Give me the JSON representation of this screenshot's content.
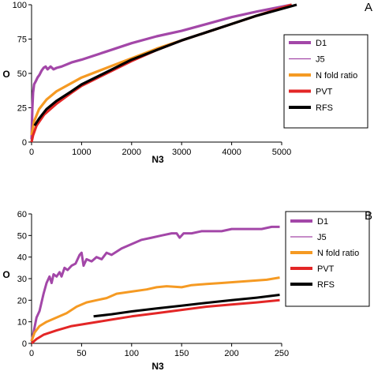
{
  "chart_data": [
    {
      "type": "line",
      "panel_label": "A",
      "xlabel": "N3",
      "ylabel": "O",
      "xlim": [
        0,
        5000
      ],
      "ylim": [
        0,
        100
      ],
      "xticks": [
        "0",
        "1000",
        "2000",
        "3000",
        "4000",
        "5000"
      ],
      "yticks": [
        "0",
        "25",
        "50",
        "75",
        "100"
      ],
      "legend_position": "right",
      "series": [
        {
          "name": "D1",
          "color": "#A347A8",
          "points": [
            [
              0,
              2
            ],
            [
              15,
              25
            ],
            [
              30,
              36
            ],
            [
              50,
              42
            ],
            [
              80,
              44
            ],
            [
              120,
              47
            ],
            [
              160,
              49
            ],
            [
              200,
              52
            ],
            [
              240,
              54
            ],
            [
              280,
              55
            ],
            [
              320,
              53
            ],
            [
              380,
              55
            ],
            [
              440,
              53
            ],
            [
              500,
              54
            ],
            [
              600,
              55
            ],
            [
              800,
              58
            ],
            [
              1000,
              60
            ],
            [
              1500,
              66
            ],
            [
              2000,
              72
            ],
            [
              2500,
              77
            ],
            [
              3000,
              81
            ],
            [
              3500,
              86
            ],
            [
              4000,
              91
            ],
            [
              4500,
              95
            ],
            [
              5200,
              100
            ]
          ]
        },
        {
          "name": "J5",
          "color": "#A347A8",
          "points": []
        },
        {
          "name": "N fold ratio",
          "color": "#F59A23",
          "points": [
            [
              0,
              5
            ],
            [
              50,
              15
            ],
            [
              150,
              24
            ],
            [
              300,
              31
            ],
            [
              500,
              37
            ],
            [
              800,
              43
            ],
            [
              1000,
              47
            ],
            [
              1500,
              54
            ],
            [
              2000,
              61
            ],
            [
              2500,
              68
            ],
            [
              3000,
              74
            ],
            [
              3500,
              80
            ],
            [
              4000,
              86
            ],
            [
              4500,
              92
            ],
            [
              5200,
              100
            ]
          ]
        },
        {
          "name": "PVT",
          "color": "#E32626",
          "points": [
            [
              0,
              0
            ],
            [
              30,
              5
            ],
            [
              100,
              12
            ],
            [
              250,
              20
            ],
            [
              500,
              28
            ],
            [
              800,
              36
            ],
            [
              1000,
              41
            ],
            [
              1500,
              50
            ],
            [
              2000,
              59
            ],
            [
              2500,
              67
            ],
            [
              3000,
              74
            ],
            [
              3500,
              80
            ],
            [
              4000,
              86
            ],
            [
              4500,
              92
            ],
            [
              5200,
              100
            ]
          ]
        },
        {
          "name": "RFS",
          "color": "#000000",
          "points": [
            [
              60,
              12
            ],
            [
              150,
              17
            ],
            [
              300,
              24
            ],
            [
              500,
              30
            ],
            [
              800,
              37
            ],
            [
              1000,
              42
            ],
            [
              1500,
              51
            ],
            [
              2000,
              60
            ],
            [
              2500,
              67
            ],
            [
              3000,
              74
            ],
            [
              3500,
              80
            ],
            [
              4000,
              86
            ],
            [
              4500,
              92
            ],
            [
              5300,
              100
            ]
          ]
        }
      ]
    },
    {
      "type": "line",
      "panel_label": "B",
      "xlabel": "N3",
      "ylabel": "O",
      "xlim": [
        0,
        250
      ],
      "ylim": [
        0,
        60
      ],
      "xticks": [
        "0",
        "50",
        "100",
        "150",
        "200",
        "250"
      ],
      "yticks": [
        "0",
        "10",
        "20",
        "30",
        "40",
        "50",
        "60"
      ],
      "legend_position": "right",
      "series": [
        {
          "name": "D1",
          "color": "#A347A8",
          "points": [
            [
              0,
              1
            ],
            [
              2,
              5
            ],
            [
              5,
              12
            ],
            [
              8,
              15
            ],
            [
              12,
              23
            ],
            [
              15,
              28
            ],
            [
              18,
              31
            ],
            [
              20,
              28
            ],
            [
              22,
              32
            ],
            [
              25,
              31
            ],
            [
              28,
              33
            ],
            [
              30,
              31
            ],
            [
              33,
              35
            ],
            [
              36,
              34
            ],
            [
              40,
              36
            ],
            [
              44,
              37
            ],
            [
              48,
              41
            ],
            [
              50,
              42
            ],
            [
              52,
              36
            ],
            [
              55,
              39
            ],
            [
              60,
              38
            ],
            [
              65,
              40
            ],
            [
              70,
              39
            ],
            [
              75,
              42
            ],
            [
              80,
              41
            ],
            [
              90,
              44
            ],
            [
              100,
              46
            ],
            [
              110,
              48
            ],
            [
              120,
              49
            ],
            [
              130,
              50
            ],
            [
              140,
              51
            ],
            [
              145,
              51
            ],
            [
              148,
              49
            ],
            [
              152,
              51
            ],
            [
              160,
              51
            ],
            [
              170,
              52
            ],
            [
              180,
              52
            ],
            [
              190,
              52
            ],
            [
              200,
              53
            ],
            [
              210,
              53
            ],
            [
              220,
              53
            ],
            [
              230,
              53
            ],
            [
              240,
              54
            ],
            [
              248,
              54
            ]
          ]
        },
        {
          "name": "J5",
          "color": "#A347A8",
          "points": []
        },
        {
          "name": "N fold ratio",
          "color": "#F59A23",
          "points": [
            [
              0,
              1
            ],
            [
              3,
              5
            ],
            [
              8,
              8
            ],
            [
              15,
              10
            ],
            [
              25,
              12
            ],
            [
              35,
              14
            ],
            [
              45,
              17
            ],
            [
              55,
              19
            ],
            [
              65,
              20
            ],
            [
              75,
              21
            ],
            [
              85,
              23
            ],
            [
              100,
              24
            ],
            [
              115,
              25
            ],
            [
              125,
              26
            ],
            [
              135,
              26.5
            ],
            [
              150,
              26
            ],
            [
              160,
              27
            ],
            [
              175,
              27.5
            ],
            [
              190,
              28
            ],
            [
              205,
              28.5
            ],
            [
              220,
              29
            ],
            [
              235,
              29.5
            ],
            [
              248,
              30.5
            ]
          ]
        },
        {
          "name": "PVT",
          "color": "#E32626",
          "points": [
            [
              0,
              0
            ],
            [
              5,
              2
            ],
            [
              12,
              4
            ],
            [
              25,
              6
            ],
            [
              40,
              8
            ],
            [
              60,
              9.5
            ],
            [
              80,
              11
            ],
            [
              100,
              12.5
            ],
            [
              125,
              14
            ],
            [
              150,
              15.5
            ],
            [
              175,
              17
            ],
            [
              200,
              18
            ],
            [
              225,
              19
            ],
            [
              248,
              20
            ]
          ]
        },
        {
          "name": "RFS",
          "color": "#000000",
          "points": [
            [
              62,
              12.5
            ],
            [
              80,
              13.5
            ],
            [
              100,
              14.8
            ],
            [
              125,
              16.2
            ],
            [
              150,
              17.5
            ],
            [
              175,
              18.8
            ],
            [
              200,
              20
            ],
            [
              225,
              21.2
            ],
            [
              248,
              22.5
            ]
          ]
        }
      ]
    }
  ]
}
